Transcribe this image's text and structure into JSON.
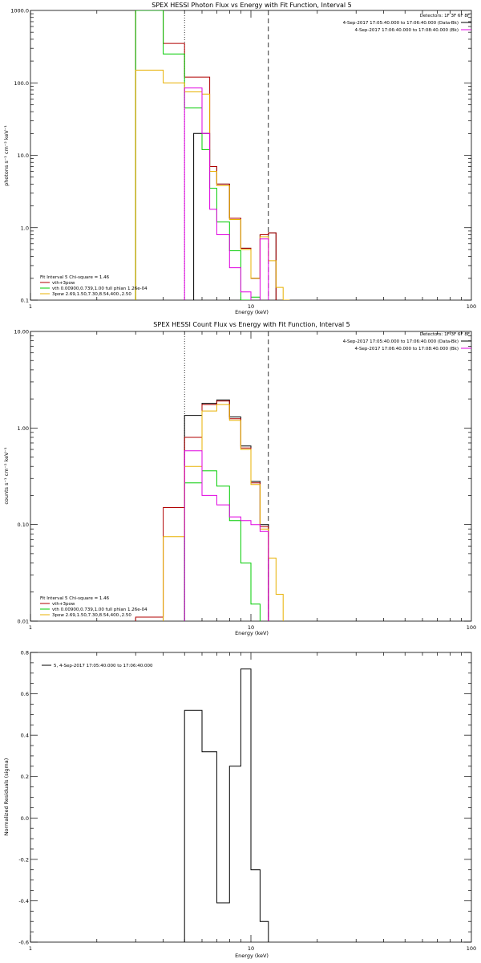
{
  "chart_data": [
    {
      "type": "line",
      "title": "SPEX HESSI Photon Flux vs Energy with Fit Function, Interval 5",
      "xlabel": "Energy (keV)",
      "ylabel": "photons s⁻¹ cm⁻² keV⁻¹",
      "xscale": "log",
      "yscale": "log",
      "xlim": [
        1,
        100
      ],
      "ylim": [
        0.1,
        1000
      ],
      "x_ticks": [
        "1",
        "10",
        "100"
      ],
      "y_ticks": [
        "0.1",
        "1.0",
        "10.0",
        "100.0",
        "1000.0"
      ],
      "vlines": [
        {
          "x": 5,
          "style": "dotted"
        },
        {
          "x": 12,
          "style": "dashed"
        }
      ],
      "header": [
        "Detectors: 1F 3F 6F 8F",
        "4-Sep-2017 17:05:40.000 to 17:06:40.000 (Data-Bk)",
        "4-Sep-2017 17:06:40.000 to 17:08:40.000 (Bk)"
      ],
      "legend": [
        "Fit Interval 5   Chi-square = 1.46",
        "vth+3pow",
        "vth 0.00900,0.739,1.00  full phlan 1.26e-04",
        "3pow 2.69,1.50,7.30,8.54,400.,2.50"
      ],
      "legend_colors": [
        "#000000",
        "#b00000",
        "#00cc00",
        "#e8b000"
      ],
      "edges": [
        3,
        4,
        5,
        5.5,
        6,
        6.5,
        7,
        8,
        9,
        10,
        11,
        12,
        13,
        14,
        15
      ],
      "series": [
        {
          "color": "#000000",
          "values": [
            null,
            null,
            null,
            20,
            20,
            7,
            4,
            1.35,
            0.52,
            0.2,
            0.8,
            0.85,
            null,
            null
          ]
        },
        {
          "color": "#b00000",
          "values": [
            1000,
            350,
            120,
            120,
            120,
            7,
            4,
            1.35,
            0.52,
            0.2,
            0.8,
            0.85,
            null,
            null
          ]
        },
        {
          "color": "#00cc00",
          "values": [
            1000,
            250,
            45,
            45,
            12,
            3.5,
            1.2,
            0.48,
            0.1,
            0.11,
            null,
            null,
            null,
            null
          ]
        },
        {
          "color": "#e8b000",
          "values": [
            150,
            100,
            75,
            75,
            70,
            6,
            3.8,
            1.3,
            0.5,
            0.2,
            0.75,
            0.35,
            0.15,
            0.1
          ]
        },
        {
          "color": "#e000e0",
          "values": [
            null,
            null,
            85,
            85,
            20,
            1.8,
            0.8,
            0.28,
            0.13,
            0.09,
            0.7,
            null,
            null,
            null
          ]
        }
      ]
    },
    {
      "type": "line",
      "title": "SPEX HESSI Count Flux vs Energy with Fit Function, Interval 5",
      "xlabel": "Energy (keV)",
      "ylabel": "counts s⁻¹ cm⁻² keV⁻¹",
      "xscale": "log",
      "yscale": "log",
      "xlim": [
        1,
        100
      ],
      "ylim": [
        0.01,
        10
      ],
      "x_ticks": [
        "1",
        "10",
        "100"
      ],
      "y_ticks": [
        "0.01",
        "0.10",
        "1.00",
        "10.00"
      ],
      "vlines": [
        {
          "x": 5,
          "style": "dotted"
        },
        {
          "x": 12,
          "style": "dashed"
        }
      ],
      "header": [
        "Detectors: 1F 3F 6F 8F",
        "4-Sep-2017 17:05:40.000 to 17:06:40.000 (Data-Bk)",
        "4-Sep-2017 17:06:40.000 to 17:08:40.000 (Bk)"
      ],
      "legend": [
        "Fit Interval 5   Chi-square = 1.46",
        "vth+3pow",
        "vth 0.00900,0.739,1.00  full phlan 1.26e-04",
        "3pow 2.69,1.50,7.30,8.54,400.,2.50"
      ],
      "legend_colors": [
        "#000000",
        "#b00000",
        "#00cc00",
        "#e8b000"
      ],
      "edges": [
        3,
        4,
        5,
        6,
        7,
        8,
        9,
        10,
        11,
        12,
        13,
        14
      ],
      "series": [
        {
          "color": "#000000",
          "values": [
            null,
            null,
            1.35,
            1.8,
            1.95,
            1.3,
            0.65,
            0.28,
            0.1,
            null,
            null
          ]
        },
        {
          "color": "#b00000",
          "values": [
            0.011,
            0.15,
            0.8,
            1.75,
            1.9,
            1.25,
            0.62,
            0.27,
            0.095,
            null,
            null
          ]
        },
        {
          "color": "#00cc00",
          "values": [
            null,
            null,
            0.27,
            0.36,
            0.25,
            0.11,
            0.04,
            0.015,
            null,
            null,
            null
          ]
        },
        {
          "color": "#e8b000",
          "values": [
            null,
            0.075,
            0.4,
            1.5,
            1.75,
            1.2,
            0.6,
            0.26,
            0.09,
            0.045,
            0.019
          ]
        },
        {
          "color": "#e000e0",
          "values": [
            null,
            null,
            0.58,
            0.2,
            0.16,
            0.12,
            0.11,
            0.1,
            0.085,
            null,
            null
          ]
        }
      ]
    },
    {
      "type": "line",
      "title": "",
      "xlabel": "Energy (keV)",
      "ylabel": "Normalized Residuals (sigma)",
      "xscale": "log",
      "xlim": [
        1,
        100
      ],
      "ylim": [
        -0.6,
        0.8
      ],
      "x_ticks": [
        "1",
        "10",
        "100"
      ],
      "y_ticks": [
        "-0.6",
        "-0.4",
        "-0.2",
        "0.0",
        "0.2",
        "0.4",
        "0.6",
        "0.8"
      ],
      "legend": [
        "5,  4-Sep-2017 17:05:40.000 to 17:06:40.000"
      ],
      "legend_colors": [
        "#000000"
      ],
      "edges": [
        5,
        6,
        7,
        8,
        9,
        10,
        11,
        12
      ],
      "series": [
        {
          "color": "#000000",
          "values": [
            0.52,
            0.32,
            -0.41,
            0.25,
            0.72,
            -0.25,
            -0.5
          ]
        }
      ]
    }
  ]
}
